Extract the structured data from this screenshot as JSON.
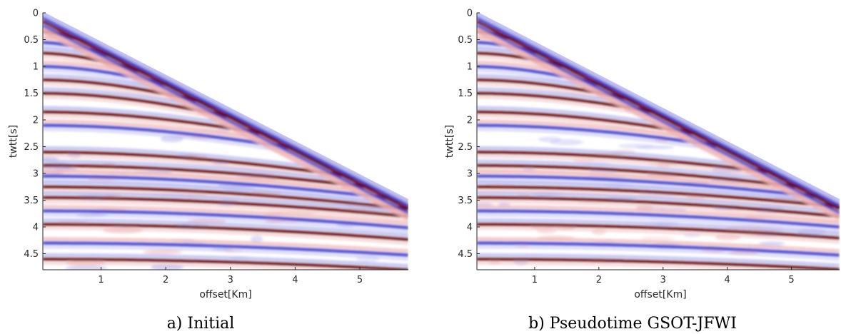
{
  "chart_data": [
    {
      "type": "heatmap",
      "caption": "a) Initial",
      "xlabel": "offset[Km]",
      "ylabel": "twtt[s]",
      "xlim": [
        0.1,
        5.75
      ],
      "ylim": [
        0,
        4.8
      ],
      "y_reversed": true,
      "xticks": [
        1,
        2,
        3,
        4,
        5
      ],
      "yticks": [
        0,
        0.5,
        1,
        1.5,
        2,
        2.5,
        3,
        3.5,
        4,
        4.5
      ],
      "xtick_labels": [
        "1",
        "2",
        "3",
        "4",
        "5"
      ],
      "ytick_labels": [
        "0",
        "0.5",
        "1",
        "1.5",
        "2",
        "2.5",
        "3",
        "3.5",
        "4",
        "4.5"
      ],
      "colormap": [
        "#00004d",
        "#3a3acc",
        "#b4b4f0",
        "#ffffff",
        "#f0b4b4",
        "#cc3a3a",
        "#6b0000"
      ],
      "direct_arrival": {
        "t0": 0.1,
        "slope_s_per_km": 0.62
      },
      "reflections_t0": [
        0.35,
        0.55,
        0.75,
        1.0,
        1.25,
        1.5,
        1.85,
        2.1,
        2.6,
        2.85,
        3.05,
        3.25,
        3.45,
        3.7,
        3.95,
        4.3,
        4.6
      ],
      "notes_amplitude": "red = positive, blue = negative"
    },
    {
      "type": "heatmap",
      "caption": "b) Pseudotime GSOT-JFWI",
      "xlabel": "offset[Km]",
      "ylabel": "twtt[s]",
      "xlim": [
        0.1,
        5.75
      ],
      "ylim": [
        0,
        4.8
      ],
      "y_reversed": true,
      "xticks": [
        1,
        2,
        3,
        4,
        5
      ],
      "yticks": [
        0,
        0.5,
        1,
        1.5,
        2,
        2.5,
        3,
        3.5,
        4,
        4.5
      ],
      "xtick_labels": [
        "1",
        "2",
        "3",
        "4",
        "5"
      ],
      "ytick_labels": [
        "0",
        "0.5",
        "1",
        "1.5",
        "2",
        "2.5",
        "3",
        "3.5",
        "4",
        "4.5"
      ],
      "colormap": [
        "#00004d",
        "#3a3acc",
        "#b4b4f0",
        "#ffffff",
        "#f0b4b4",
        "#cc3a3a",
        "#6b0000"
      ],
      "direct_arrival": {
        "t0": 0.1,
        "slope_s_per_km": 0.62
      },
      "reflections_t0": [
        0.35,
        0.55,
        0.75,
        1.0,
        1.25,
        1.5,
        1.85,
        2.1,
        2.6,
        2.85,
        3.05,
        3.25,
        3.45,
        3.7,
        3.95,
        4.3,
        4.6
      ],
      "notes_amplitude": "red = positive, blue = negative"
    }
  ]
}
